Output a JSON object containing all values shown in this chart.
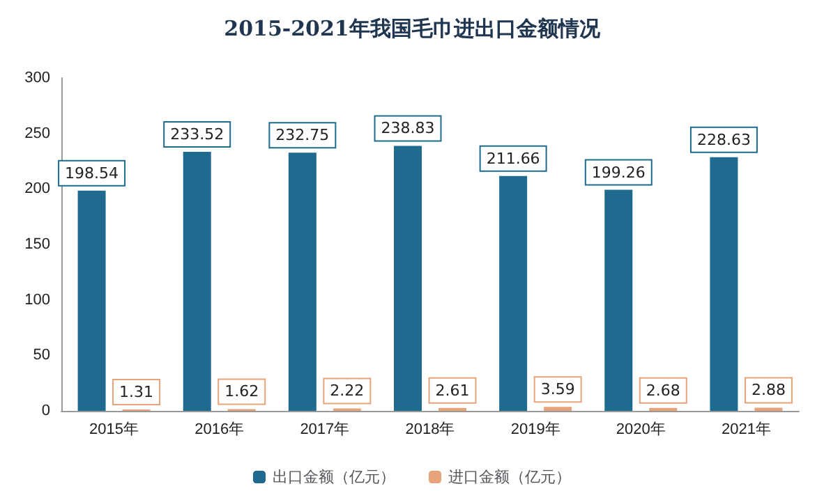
{
  "chart_data": {
    "type": "bar",
    "title": "2015-2021年我国毛巾进出口金额情况",
    "categories": [
      "2015年",
      "2016年",
      "2017年",
      "2018年",
      "2019年",
      "2020年",
      "2021年"
    ],
    "series": [
      {
        "name": "出口金额（亿元）",
        "color": "#1f6a8f",
        "values": [
          198.54,
          233.52,
          232.75,
          238.83,
          211.66,
          199.26,
          228.63
        ]
      },
      {
        "name": "进口金额（亿元）",
        "color": "#e8a27a",
        "values": [
          1.31,
          1.62,
          2.22,
          2.61,
          3.59,
          2.68,
          2.88
        ]
      }
    ],
    "ylim": [
      0,
      300
    ],
    "yticks": [
      0,
      50,
      100,
      150,
      200,
      250,
      300
    ],
    "grid": false,
    "legend": "bottom",
    "data_labels": true
  }
}
